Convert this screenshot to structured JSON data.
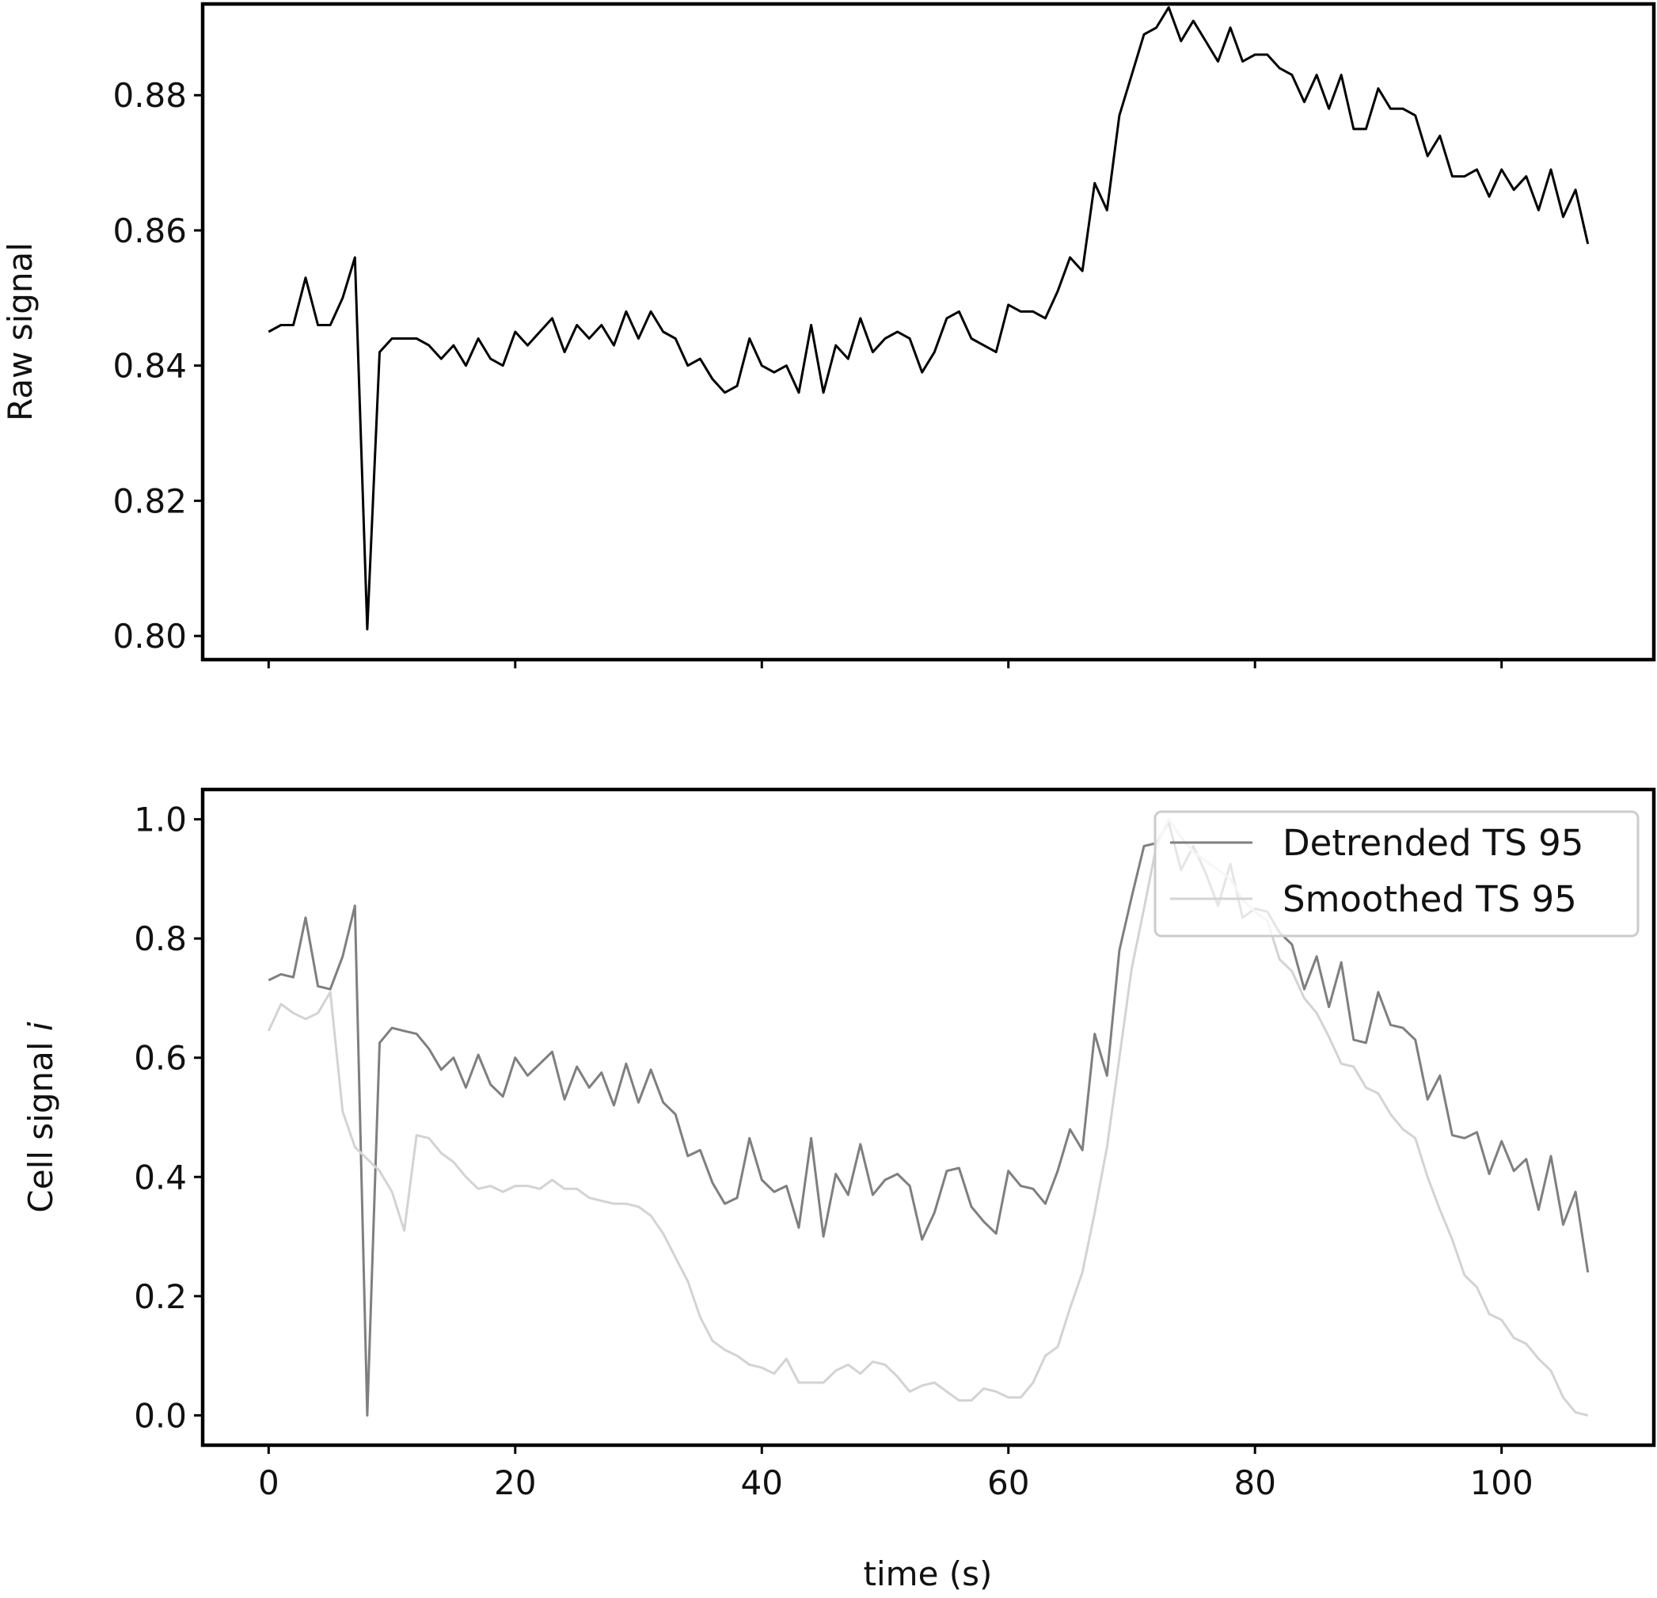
{
  "chart_data": [
    {
      "type": "line",
      "title": "",
      "xlabel": "",
      "ylabel": "Raw signal",
      "xlim": [
        -5.35,
        112.35
      ],
      "ylim": [
        0.7965,
        0.8935
      ],
      "xticks": [
        0,
        20,
        40,
        60,
        80,
        100
      ],
      "show_xtick_labels": false,
      "yticks": [
        0.8,
        0.82,
        0.84,
        0.86,
        0.88
      ],
      "ytick_labels": [
        "0.80",
        "0.82",
        "0.84",
        "0.86",
        "0.88"
      ],
      "grid": false,
      "legend": null,
      "series": [
        {
          "color": "#000000",
          "x": [
            0,
            1,
            2,
            3,
            4,
            5,
            6,
            7,
            8,
            9,
            10,
            11,
            12,
            13,
            14,
            15,
            16,
            17,
            18,
            19,
            20,
            21,
            22,
            23,
            24,
            25,
            26,
            27,
            28,
            29,
            30,
            31,
            32,
            33,
            34,
            35,
            36,
            37,
            38,
            39,
            40,
            41,
            42,
            43,
            44,
            45,
            46,
            47,
            48,
            49,
            50,
            51,
            52,
            53,
            54,
            55,
            56,
            57,
            58,
            59,
            60,
            61,
            62,
            63,
            64,
            65,
            66,
            67,
            68,
            69,
            70,
            71,
            72,
            73,
            74,
            75,
            76,
            77,
            78,
            79,
            80,
            81,
            82,
            83,
            84,
            85,
            86,
            87,
            88,
            89,
            90,
            91,
            92,
            93,
            94,
            95,
            96,
            97,
            98,
            99,
            100,
            101,
            102,
            103,
            104,
            105,
            106,
            107
          ],
          "values": [
            0.845,
            0.846,
            0.846,
            0.853,
            0.846,
            0.846,
            0.85,
            0.856,
            0.801,
            0.842,
            0.844,
            0.844,
            0.844,
            0.843,
            0.841,
            0.843,
            0.84,
            0.844,
            0.841,
            0.84,
            0.845,
            0.843,
            0.845,
            0.847,
            0.842,
            0.846,
            0.844,
            0.846,
            0.843,
            0.848,
            0.844,
            0.848,
            0.845,
            0.844,
            0.84,
            0.841,
            0.838,
            0.836,
            0.837,
            0.844,
            0.84,
            0.839,
            0.84,
            0.836,
            0.846,
            0.836,
            0.843,
            0.841,
            0.847,
            0.842,
            0.844,
            0.845,
            0.844,
            0.839,
            0.842,
            0.847,
            0.848,
            0.844,
            0.843,
            0.842,
            0.849,
            0.848,
            0.848,
            0.847,
            0.851,
            0.856,
            0.854,
            0.867,
            0.863,
            0.877,
            0.883,
            0.889,
            0.89,
            0.893,
            0.888,
            0.891,
            0.888,
            0.885,
            0.89,
            0.885,
            0.886,
            0.886,
            0.884,
            0.883,
            0.879,
            0.883,
            0.878,
            0.883,
            0.875,
            0.875,
            0.881,
            0.878,
            0.878,
            0.877,
            0.871,
            0.874,
            0.868,
            0.868,
            0.869,
            0.865,
            0.869,
            0.866,
            0.868,
            0.863,
            0.869,
            0.862,
            0.866,
            0.858
          ]
        }
      ]
    },
    {
      "type": "line",
      "title": "",
      "xlabel": "time (s)",
      "ylabel": "Cell signal ",
      "ylabel_italic": "i",
      "xlim": [
        -5.35,
        112.35
      ],
      "ylim": [
        -0.05,
        1.05
      ],
      "xticks": [
        0,
        20,
        40,
        60,
        80,
        100
      ],
      "xtick_labels": [
        "0",
        "20",
        "40",
        "60",
        "80",
        "100"
      ],
      "yticks": [
        0.0,
        0.2,
        0.4,
        0.6,
        0.8,
        1.0
      ],
      "ytick_labels": [
        "0.0",
        "0.2",
        "0.4",
        "0.6",
        "0.8",
        "1.0"
      ],
      "grid": false,
      "legend": "top-right",
      "series": [
        {
          "name": "Detrended TS 95",
          "color": "#7f7f7f",
          "x": [
            0,
            1,
            2,
            3,
            4,
            5,
            6,
            7,
            8,
            9,
            10,
            11,
            12,
            13,
            14,
            15,
            16,
            17,
            18,
            19,
            20,
            21,
            22,
            23,
            24,
            25,
            26,
            27,
            28,
            29,
            30,
            31,
            32,
            33,
            34,
            35,
            36,
            37,
            38,
            39,
            40,
            41,
            42,
            43,
            44,
            45,
            46,
            47,
            48,
            49,
            50,
            51,
            52,
            53,
            54,
            55,
            56,
            57,
            58,
            59,
            60,
            61,
            62,
            63,
            64,
            65,
            66,
            67,
            68,
            69,
            70,
            71,
            72,
            73,
            74,
            75,
            76,
            77,
            78,
            79,
            80,
            81,
            82,
            83,
            84,
            85,
            86,
            87,
            88,
            89,
            90,
            91,
            92,
            93,
            94,
            95,
            96,
            97,
            98,
            99,
            100,
            101,
            102,
            103,
            104,
            105,
            106,
            107
          ],
          "values": [
            0.73,
            0.74,
            0.735,
            0.835,
            0.72,
            0.715,
            0.77,
            0.855,
            0.0,
            0.625,
            0.65,
            0.645,
            0.64,
            0.615,
            0.58,
            0.6,
            0.55,
            0.605,
            0.555,
            0.535,
            0.6,
            0.57,
            0.59,
            0.61,
            0.53,
            0.585,
            0.55,
            0.575,
            0.52,
            0.59,
            0.525,
            0.58,
            0.525,
            0.505,
            0.435,
            0.445,
            0.39,
            0.355,
            0.365,
            0.465,
            0.395,
            0.375,
            0.385,
            0.315,
            0.465,
            0.3,
            0.405,
            0.37,
            0.455,
            0.37,
            0.395,
            0.405,
            0.385,
            0.295,
            0.34,
            0.41,
            0.415,
            0.35,
            0.325,
            0.305,
            0.41,
            0.385,
            0.38,
            0.355,
            0.41,
            0.48,
            0.445,
            0.64,
            0.57,
            0.78,
            0.87,
            0.955,
            0.96,
            0.995,
            0.915,
            0.955,
            0.91,
            0.855,
            0.925,
            0.835,
            0.85,
            0.845,
            0.81,
            0.79,
            0.715,
            0.77,
            0.685,
            0.76,
            0.63,
            0.625,
            0.71,
            0.655,
            0.65,
            0.63,
            0.53,
            0.57,
            0.47,
            0.465,
            0.475,
            0.405,
            0.46,
            0.41,
            0.43,
            0.345,
            0.435,
            0.32,
            0.375,
            0.24
          ]
        },
        {
          "name": "Smoothed TS 95",
          "color": "#d3d3d3",
          "x": [
            0,
            1,
            2,
            3,
            4,
            5,
            6,
            7,
            8,
            9,
            10,
            11,
            12,
            13,
            14,
            15,
            16,
            17,
            18,
            19,
            20,
            21,
            22,
            23,
            24,
            25,
            26,
            27,
            28,
            29,
            30,
            31,
            32,
            33,
            34,
            35,
            36,
            37,
            38,
            39,
            40,
            41,
            42,
            43,
            44,
            45,
            46,
            47,
            48,
            49,
            50,
            51,
            52,
            53,
            54,
            55,
            56,
            57,
            58,
            59,
            60,
            61,
            62,
            63,
            64,
            65,
            66,
            67,
            68,
            69,
            70,
            71,
            72,
            73,
            74,
            75,
            76,
            77,
            78,
            79,
            80,
            81,
            82,
            83,
            84,
            85,
            86,
            87,
            88,
            89,
            90,
            91,
            92,
            93,
            94,
            95,
            96,
            97,
            98,
            99,
            100,
            101,
            102,
            103,
            104,
            105,
            106,
            107
          ],
          "values": [
            0.645,
            0.69,
            0.675,
            0.665,
            0.675,
            0.71,
            0.51,
            0.45,
            0.43,
            0.41,
            0.375,
            0.31,
            0.47,
            0.465,
            0.44,
            0.425,
            0.4,
            0.38,
            0.385,
            0.375,
            0.385,
            0.385,
            0.38,
            0.395,
            0.38,
            0.38,
            0.365,
            0.36,
            0.355,
            0.355,
            0.35,
            0.335,
            0.305,
            0.265,
            0.225,
            0.165,
            0.125,
            0.11,
            0.1,
            0.085,
            0.08,
            0.07,
            0.095,
            0.055,
            0.055,
            0.055,
            0.075,
            0.085,
            0.07,
            0.09,
            0.085,
            0.065,
            0.04,
            0.05,
            0.055,
            0.04,
            0.025,
            0.025,
            0.045,
            0.04,
            0.03,
            0.03,
            0.055,
            0.1,
            0.115,
            0.18,
            0.24,
            0.34,
            0.45,
            0.6,
            0.75,
            0.85,
            0.955,
            1.0,
            0.97,
            0.945,
            0.93,
            0.915,
            0.9,
            0.865,
            0.845,
            0.83,
            0.765,
            0.745,
            0.7,
            0.675,
            0.635,
            0.59,
            0.585,
            0.55,
            0.54,
            0.505,
            0.48,
            0.465,
            0.4,
            0.345,
            0.295,
            0.235,
            0.215,
            0.17,
            0.16,
            0.13,
            0.12,
            0.095,
            0.075,
            0.03,
            0.005,
            0.0
          ]
        }
      ]
    }
  ]
}
